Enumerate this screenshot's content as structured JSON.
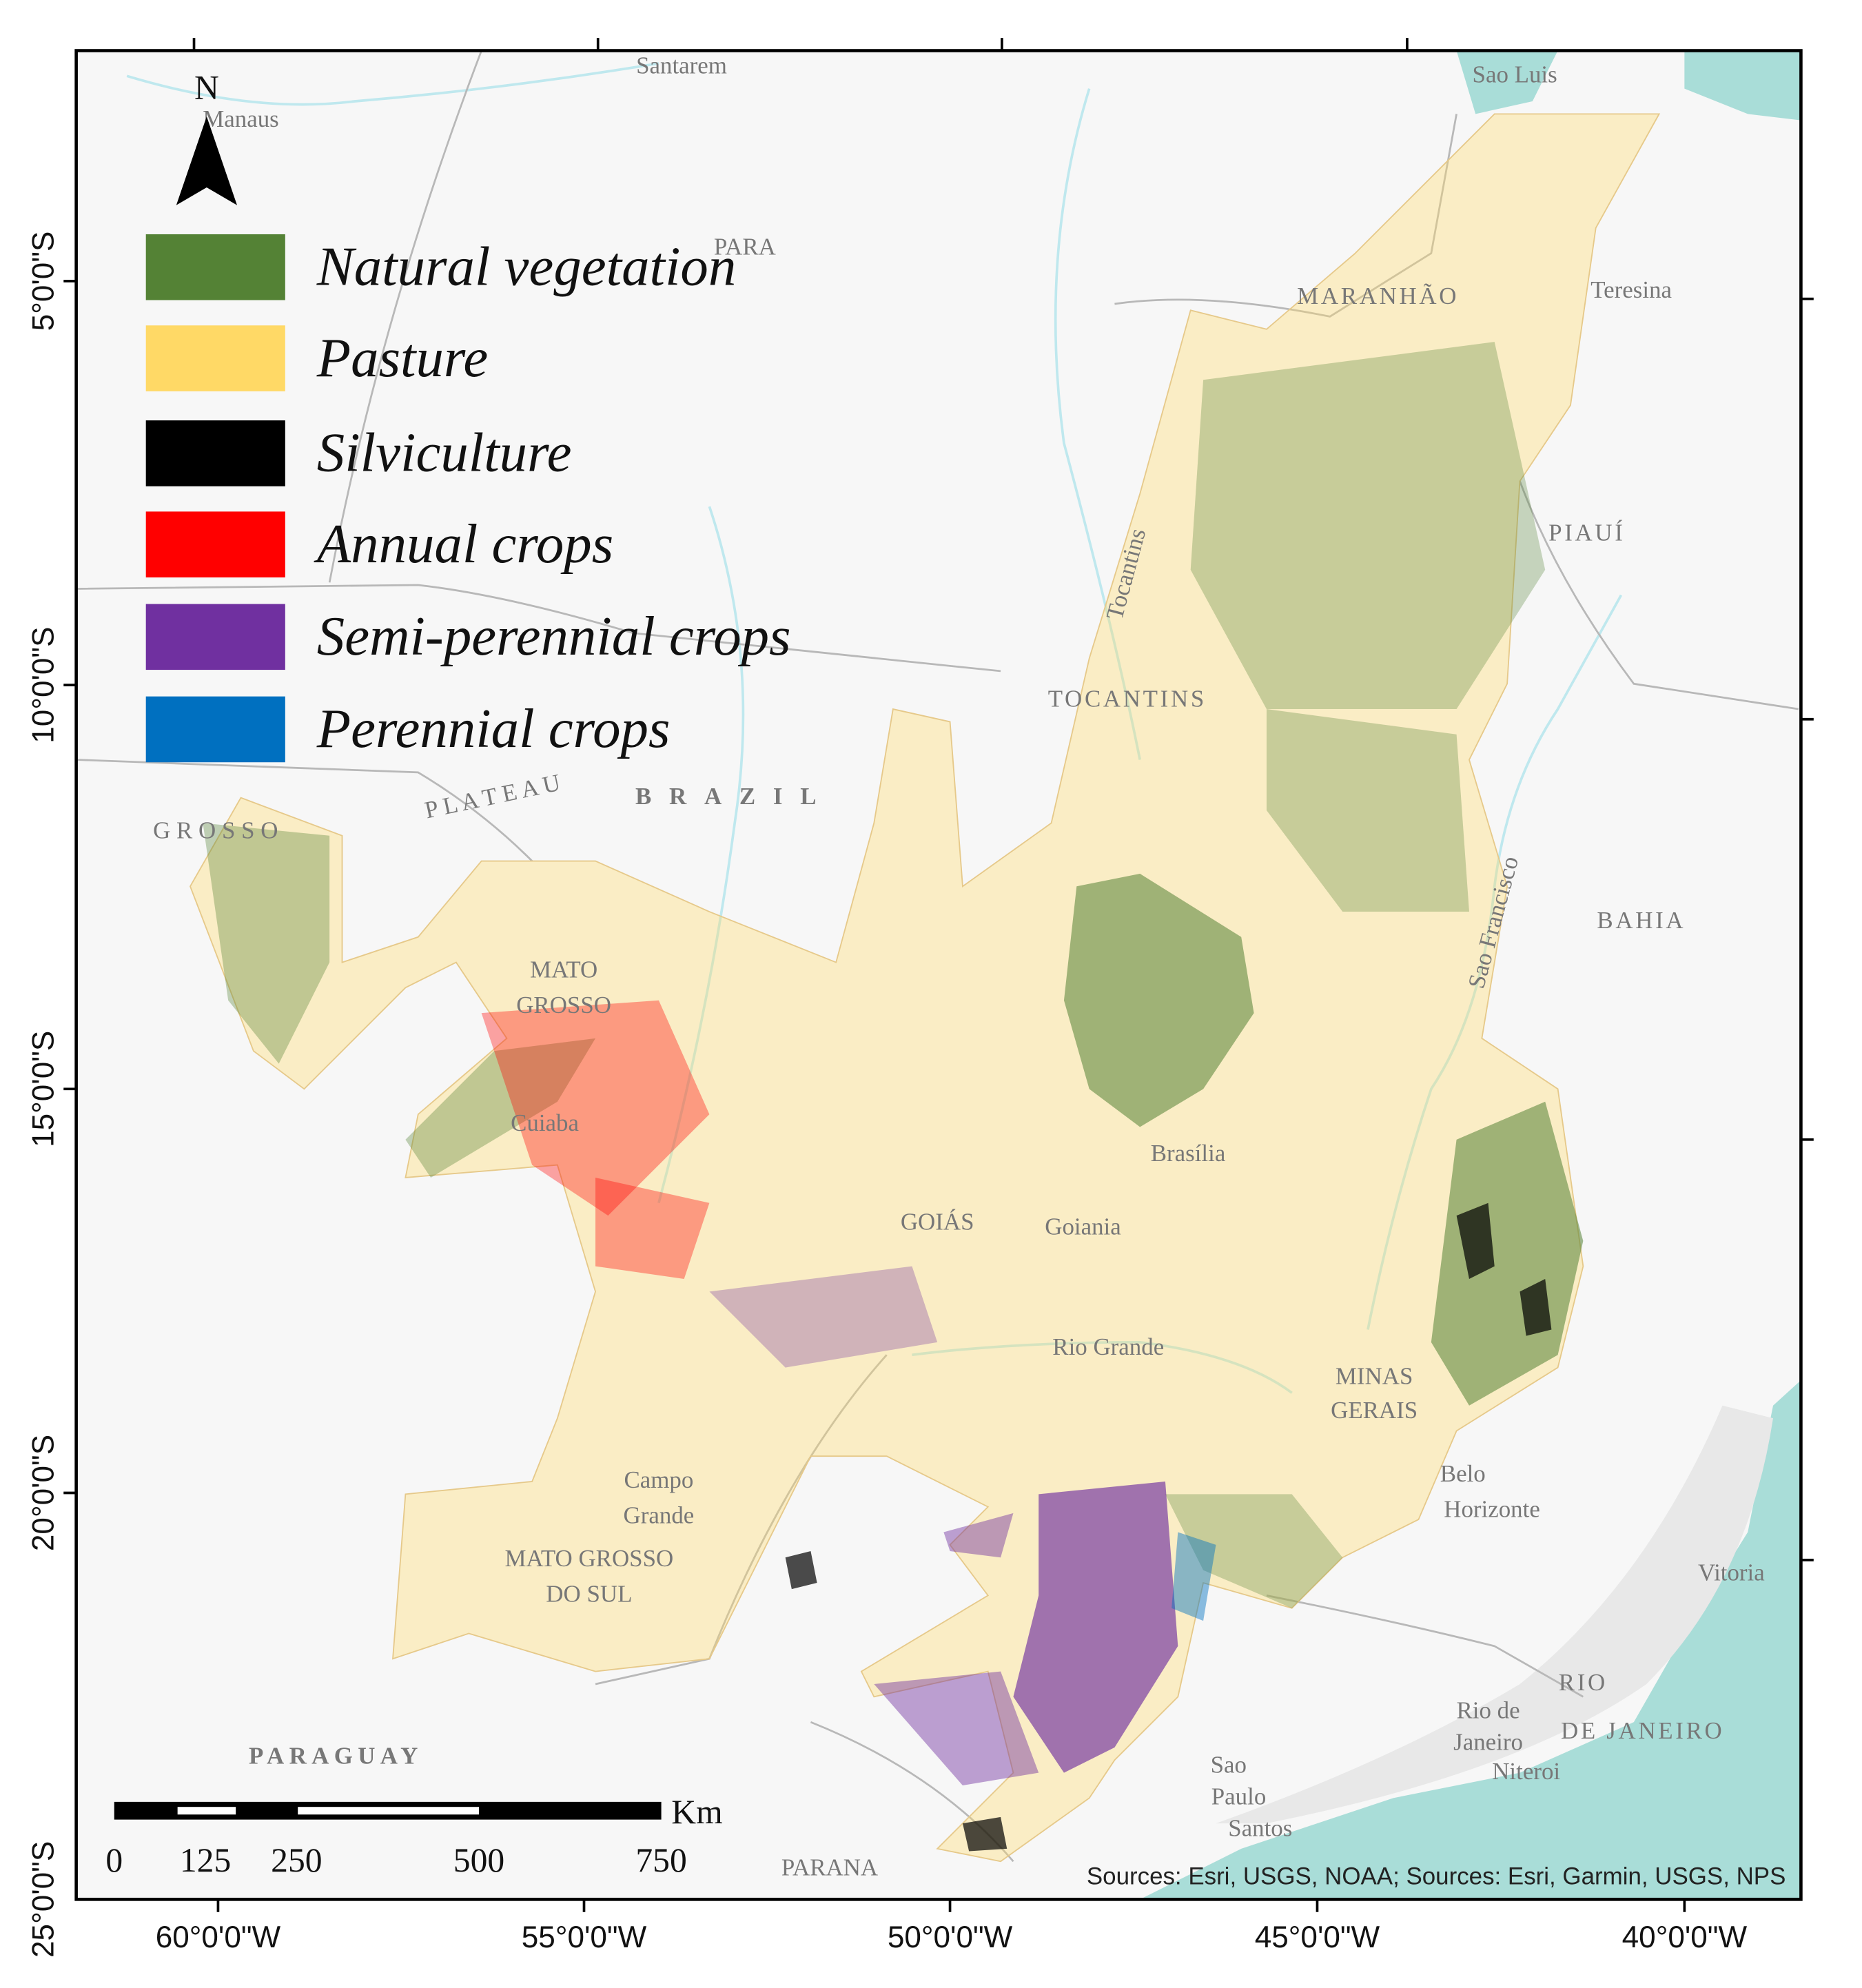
{
  "legend": [
    {
      "label": "Natural vegetation",
      "color": "#548235"
    },
    {
      "label": "Pasture",
      "color": "#ffd966"
    },
    {
      "label": "Silviculture",
      "color": "#000000"
    },
    {
      "label": "Annual crops",
      "color": "#ff0000"
    },
    {
      "label": "Semi-perennial crops",
      "color": "#7030a0"
    },
    {
      "label": "Perennial crops",
      "color": "#0070c0"
    }
  ],
  "north_arrow": "N",
  "latitude_labels": [
    "5°0'0\"S",
    "10°0'0\"S",
    "15°0'0\"S",
    "20°0'0\"S",
    "25°0'0\"S"
  ],
  "longitude_labels": [
    "60°0'0\"W",
    "55°0'0\"W",
    "50°0'0\"W",
    "45°0'0\"W",
    "40°0'0\"W"
  ],
  "scale_bar": {
    "ticks": [
      0,
      125,
      250,
      500,
      750
    ],
    "unit": "Km"
  },
  "places": [
    "Santarem",
    "Manaus",
    "PARA",
    "Sao Luis",
    "MARANHÃO",
    "Teresina",
    "PIAUÍ",
    "TOCANTINS",
    "BRAZIL",
    "BAHIA",
    "MATO",
    "GROSSO",
    "Cuiaba",
    "Brasília",
    "GOIÁS",
    "Goiania",
    "MINAS",
    "GERAIS",
    "Belo",
    "Horizonte",
    "Campo",
    "Grande",
    "MATO GROSSO",
    "DO SUL",
    "Vitoria",
    "RIO",
    "DE JANEIRO",
    "Rio de",
    "Janeiro",
    "Niteroi",
    "Sao",
    "Paulo",
    "Santos",
    "PARAGUAY",
    "PARANA",
    "G R O S S O",
    "P L A T E A U",
    "Rio Grande",
    "Tocantins",
    "Sao Francisco"
  ],
  "sources": "Sources: Esri, USGS, NOAA; Sources: Esri, Garmin, USGS, NPS"
}
